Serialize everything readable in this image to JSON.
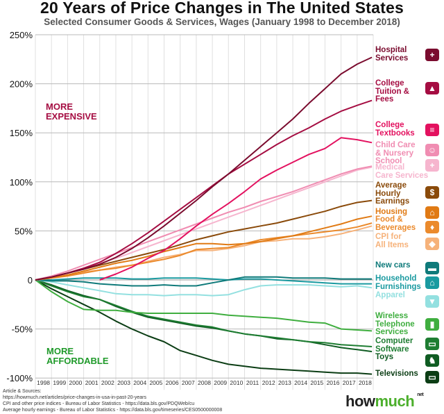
{
  "chart_data": {
    "type": "line",
    "title": "20 Years of Price Changes in The United States",
    "subtitle": "Selected Consumer Goods & Services, Wages (January 1998 to December 2018)",
    "ylim": [
      -100,
      250
    ],
    "yticks": [
      250,
      200,
      150,
      100,
      50,
      0,
      -50,
      -100
    ],
    "ytick_labels": [
      "250%",
      "200%",
      "150%",
      "100%",
      "50%",
      "0",
      "-50%",
      "-100%"
    ],
    "xtick_labels": [
      "1998",
      "1999",
      "2000",
      "2001",
      "2002",
      "2003",
      "2004",
      "2005",
      "2006",
      "2007",
      "2008",
      "2009",
      "2010",
      "2011",
      "2012",
      "2013",
      "2014",
      "2015",
      "2016",
      "2017",
      "2018"
    ],
    "x": [
      "1998-01",
      "1999-01",
      "2000-01",
      "2001-01",
      "2002-01",
      "2003-01",
      "2004-01",
      "2005-01",
      "2006-01",
      "2007-01",
      "2008-01",
      "2009-01",
      "2010-01",
      "2011-01",
      "2012-01",
      "2013-01",
      "2014-01",
      "2015-01",
      "2016-01",
      "2017-01",
      "2018-01",
      "2018-12"
    ],
    "grid": true,
    "annotations": {
      "more_expensive": "MORE\nEXPENSIVE",
      "more_affordable": "MORE\nAFFORDABLE"
    },
    "series": [
      {
        "name": "Hospital\nServices",
        "color": "#7a0b2e",
        "icon": "hospital-icon",
        "values": [
          0,
          3,
          7,
          11,
          16,
          23,
          32,
          43,
          55,
          68,
          81,
          95,
          108,
          122,
          136,
          150,
          164,
          180,
          195,
          210,
          220,
          227
        ]
      },
      {
        "name": "College\nTuition &\nFees",
        "color": "#a50d42",
        "icon": "graduation-cap-icon",
        "values": [
          0,
          3,
          7,
          12,
          18,
          27,
          37,
          48,
          60,
          72,
          84,
          96,
          108,
          118,
          128,
          138,
          147,
          155,
          164,
          172,
          178,
          183
        ]
      },
      {
        "name": "College\nTextbooks",
        "color": "#e3115f",
        "icon": "books-icon",
        "values": [
          null,
          null,
          null,
          null,
          0,
          6,
          13,
          22,
          30,
          42,
          55,
          67,
          78,
          90,
          103,
          112,
          120,
          128,
          134,
          145,
          143,
          140
        ]
      },
      {
        "name": "Child Care\n& Nursery\nSchool",
        "color": "#f08db2",
        "icon": "family-icon",
        "values": [
          0,
          4,
          9,
          15,
          21,
          27,
          33,
          39,
          45,
          51,
          57,
          63,
          69,
          74,
          80,
          85,
          90,
          96,
          102,
          108,
          113,
          116
        ]
      },
      {
        "name": "Medical\nCare Services",
        "color": "#f6b5ce",
        "icon": "medical-hand-icon",
        "values": [
          0,
          3,
          7,
          12,
          17,
          22,
          28,
          34,
          40,
          46,
          52,
          58,
          64,
          70,
          76,
          82,
          88,
          94,
          100,
          106,
          112,
          115
        ]
      },
      {
        "name": "Average\nHourly\nEarnings",
        "color": "#8a4a0a",
        "icon": "clock-dollar-icon",
        "values": [
          0,
          3,
          7,
          11,
          15,
          19,
          23,
          27,
          31,
          36,
          41,
          45,
          49,
          52,
          55,
          58,
          62,
          66,
          70,
          75,
          79,
          81
        ]
      },
      {
        "name": "Housing",
        "color": "#e07a14",
        "icon": "house-icon",
        "values": [
          0,
          2,
          5,
          9,
          13,
          17,
          20,
          24,
          29,
          33,
          37,
          37,
          36,
          37,
          39,
          42,
          45,
          49,
          53,
          57,
          62,
          65
        ]
      },
      {
        "name": "Food &\nBeverages",
        "color": "#eb8a2c",
        "icon": "scale-icon",
        "values": [
          0,
          2,
          4,
          7,
          10,
          12,
          15,
          18,
          21,
          25,
          31,
          32,
          33,
          37,
          41,
          43,
          45,
          47,
          49,
          51,
          54,
          58
        ]
      },
      {
        "name": "CPI for\nAll Items",
        "color": "#f6b27a",
        "icon": "price-tag-icon",
        "values": [
          0,
          2,
          5,
          8,
          10,
          13,
          15,
          19,
          23,
          26,
          30,
          30,
          32,
          35,
          39,
          40,
          42,
          42,
          44,
          47,
          51,
          55
        ]
      },
      {
        "name": "New cars",
        "color": "#0f7a7a",
        "icon": "car-icon",
        "values": [
          0,
          -1,
          -1,
          -2,
          -4,
          -5,
          -6,
          -6,
          -5,
          -6,
          -6,
          -3,
          0,
          3,
          3,
          3,
          2,
          2,
          2,
          1,
          1,
          1
        ]
      },
      {
        "name": "Household\nFurnishings",
        "color": "#1a9aa0",
        "icon": "household-icon",
        "values": [
          0,
          0,
          1,
          2,
          2,
          2,
          1,
          1,
          2,
          2,
          2,
          1,
          0,
          1,
          1,
          0,
          -1,
          -2,
          -3,
          -4,
          -4,
          -4
        ]
      },
      {
        "name": "Apparel",
        "color": "#93e0e0",
        "icon": "apparel-icon",
        "values": [
          0,
          -2,
          -5,
          -8,
          -11,
          -14,
          -15,
          -15,
          -16,
          -15,
          -15,
          -16,
          -15,
          -10,
          -6,
          -5,
          -5,
          -5,
          -6,
          -7,
          -6,
          -8
        ]
      },
      {
        "name": "Wireless\nTelephone\nServices",
        "color": "#3fae3f",
        "icon": "smartphone-icon",
        "values": [
          0,
          -12,
          -22,
          -30,
          -31,
          -31,
          -33,
          -34,
          -34,
          -34,
          -34,
          -34,
          -36,
          -37,
          -38,
          -39,
          -41,
          -43,
          -44,
          -50,
          -51,
          -52
        ]
      },
      {
        "name": "Computer\nSoftware",
        "color": "#1e7d32",
        "icon": "laptop-icon",
        "values": [
          0,
          -6,
          -12,
          -17,
          -20,
          -26,
          -32,
          -37,
          -40,
          -43,
          -46,
          -48,
          -52,
          -55,
          -57,
          -59,
          -61,
          -63,
          -64,
          -66,
          -67,
          -68
        ]
      },
      {
        "name": "Toys",
        "color": "#0f5c22",
        "icon": "toys-icon",
        "values": [
          0,
          -5,
          -11,
          -16,
          -20,
          -27,
          -33,
          -38,
          -41,
          -44,
          -47,
          -49,
          -52,
          -55,
          -57,
          -60,
          -61,
          -63,
          -66,
          -69,
          -71,
          -73
        ]
      },
      {
        "name": "Televisions",
        "color": "#0b3d14",
        "icon": "television-icon",
        "values": [
          0,
          -9,
          -17,
          -25,
          -33,
          -42,
          -50,
          -57,
          -63,
          -72,
          -77,
          -82,
          -86,
          -88,
          -90,
          -91,
          -92,
          -93,
          -94,
          -95,
          -95,
          -96
        ]
      }
    ]
  },
  "colors": {
    "expensive": "#a50d42",
    "affordable": "#1f9a2a"
  },
  "sources": {
    "text": "Article & Sources:\nhttps://howmuch.net/articles/price-changes-in-usa-in-past-20-years\nCPI and other price indices - Bureau of Labor Statistics - https://data.bls.gov/PDQWeb/cu\nAverage hourly earnings - Bureau of Labor Statistics - https://data.bls.gov/timeseries/CES0500000008"
  },
  "logo": {
    "how": "how",
    "much": "much",
    "net": "net"
  }
}
